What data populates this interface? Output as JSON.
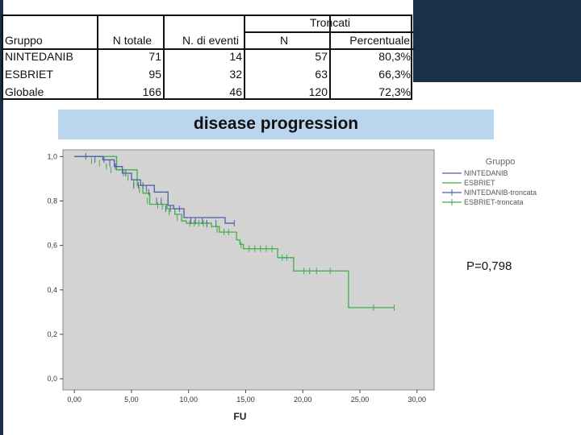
{
  "summary_table": {
    "group_header": "Troncati",
    "columns": [
      "Gruppo",
      "N totale",
      "N. di eventi",
      "N",
      "Percentuale"
    ],
    "rows": [
      {
        "name": "NINTEDANIB",
        "n_total": "71",
        "events": "14",
        "n": "57",
        "pct": "80,3%"
      },
      {
        "name": "ESBRIET",
        "n_total": "95",
        "events": "32",
        "n": "63",
        "pct": "66,3%"
      },
      {
        "name": "Globale",
        "n_total": "166",
        "events": "46",
        "n": "120",
        "pct": "72,3%"
      }
    ]
  },
  "banner_title": "disease progression",
  "p_value": "P=0,798",
  "chart_data": {
    "type": "line",
    "title": "disease progression",
    "xlabel": "FU",
    "ylabel": "",
    "x_ticks": [
      "0,00",
      "5,00",
      "10,00",
      "15,00",
      "20,00",
      "25,00",
      "30,00"
    ],
    "y_ticks": [
      "0,0",
      "0,2",
      "0,4",
      "0,6",
      "0,8",
      "1,0"
    ],
    "xlim": [
      -1,
      31.5
    ],
    "ylim": [
      -0.05,
      1.03
    ],
    "legend_title": "Gruppo",
    "legend": [
      "NINTEDANIB",
      "ESBRIET",
      "NINTEDANIB-troncata",
      "ESBRIET-troncata"
    ],
    "legend_position": "top-right",
    "colors": {
      "NINTEDANIB": "#4d5ea8",
      "ESBRIET": "#3fae49",
      "plot_bg": "#d3d3d3"
    },
    "series": [
      {
        "name": "NINTEDANIB",
        "steps": [
          [
            0,
            1.0
          ],
          [
            2.5,
            0.985
          ],
          [
            3.5,
            0.955
          ],
          [
            4.2,
            0.925
          ],
          [
            5,
            0.895
          ],
          [
            5.8,
            0.87
          ],
          [
            7,
            0.84
          ],
          [
            8.2,
            0.78
          ],
          [
            8.7,
            0.765
          ],
          [
            9.6,
            0.725
          ],
          [
            13.2,
            0.7
          ],
          [
            14,
            0.7
          ]
        ],
        "censored": [
          [
            1,
            1.0
          ],
          [
            1.8,
            0.985
          ],
          [
            2.6,
            0.985
          ],
          [
            3.1,
            0.97
          ],
          [
            3.6,
            0.955
          ],
          [
            4.5,
            0.925
          ],
          [
            5.2,
            0.87
          ],
          [
            5.6,
            0.87
          ],
          [
            6,
            0.87
          ],
          [
            6.3,
            0.855
          ],
          [
            6.5,
            0.84
          ],
          [
            7.2,
            0.8
          ],
          [
            7.6,
            0.8
          ],
          [
            8,
            0.765
          ],
          [
            8.4,
            0.765
          ],
          [
            9.2,
            0.765
          ],
          [
            10.2,
            0.71
          ],
          [
            10.6,
            0.71
          ],
          [
            11.2,
            0.71
          ],
          [
            11.6,
            0.7
          ],
          [
            12.4,
            0.7
          ],
          [
            14,
            0.7
          ]
        ]
      },
      {
        "name": "ESBRIET",
        "steps": [
          [
            0,
            1.0
          ],
          [
            3.7,
            0.94
          ],
          [
            5.5,
            0.87
          ],
          [
            6,
            0.835
          ],
          [
            6.6,
            0.785
          ],
          [
            8.1,
            0.765
          ],
          [
            8.8,
            0.74
          ],
          [
            9.4,
            0.71
          ],
          [
            9.8,
            0.7
          ],
          [
            12,
            0.685
          ],
          [
            12.7,
            0.66
          ],
          [
            14,
            0.66
          ],
          [
            14.2,
            0.625
          ],
          [
            14.5,
            0.605
          ],
          [
            14.8,
            0.585
          ],
          [
            17.8,
            0.545
          ],
          [
            19.2,
            0.485
          ],
          [
            23.9,
            0.485
          ],
          [
            24,
            0.32
          ],
          [
            28,
            0.32
          ]
        ],
        "censored": [
          [
            1.5,
            0.98
          ],
          [
            2.2,
            0.97
          ],
          [
            2.8,
            0.955
          ],
          [
            3.2,
            0.94
          ],
          [
            4.3,
            0.925
          ],
          [
            4.7,
            0.905
          ],
          [
            5.2,
            0.88
          ],
          [
            5.7,
            0.85
          ],
          [
            6.4,
            0.8
          ],
          [
            7.3,
            0.78
          ],
          [
            7.7,
            0.775
          ],
          [
            8.3,
            0.75
          ],
          [
            9,
            0.725
          ],
          [
            10.1,
            0.7
          ],
          [
            10.5,
            0.7
          ],
          [
            10.9,
            0.7
          ],
          [
            11.3,
            0.7
          ],
          [
            11.6,
            0.695
          ],
          [
            12.5,
            0.67
          ],
          [
            13.1,
            0.66
          ],
          [
            13.5,
            0.66
          ],
          [
            14.6,
            0.6
          ],
          [
            15.3,
            0.585
          ],
          [
            15.8,
            0.585
          ],
          [
            16.3,
            0.585
          ],
          [
            16.8,
            0.585
          ],
          [
            17.3,
            0.585
          ],
          [
            18.2,
            0.545
          ],
          [
            18.6,
            0.545
          ],
          [
            20.1,
            0.485
          ],
          [
            20.6,
            0.485
          ],
          [
            21.2,
            0.485
          ],
          [
            22.4,
            0.485
          ],
          [
            26.2,
            0.32
          ],
          [
            28,
            0.32
          ]
        ]
      }
    ]
  }
}
